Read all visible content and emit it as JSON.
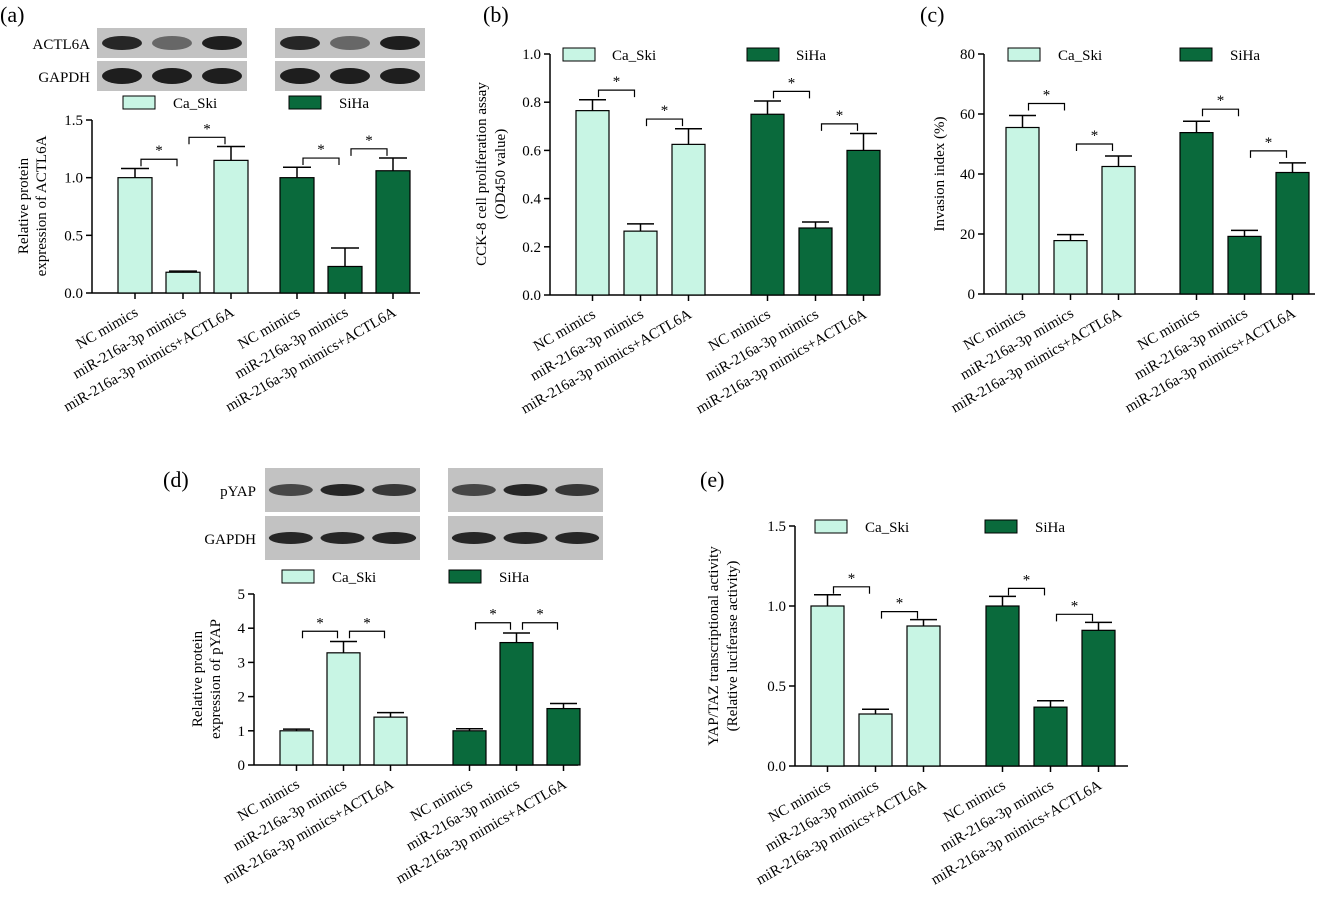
{
  "colors": {
    "light": "#c8f5e4",
    "dark": "#0a6a3c",
    "stroke": "#000000",
    "blot_bg": "#c2c2c2",
    "band": "#1e1e1e"
  },
  "chart_data": [
    {
      "type": "bar",
      "panel_label": "(a)",
      "blots": [
        "ACTL6A",
        "GAPDH"
      ],
      "categories": [
        "NC mimics",
        "miR-216a-3p mimics",
        "miR-216a-3p mimics+ACTL6A"
      ],
      "series": [
        {
          "name": "Ca_Ski",
          "values": [
            1.0,
            0.18,
            1.15
          ],
          "errors": [
            0.08,
            0.01,
            0.12
          ]
        },
        {
          "name": "SiHa",
          "values": [
            1.0,
            0.23,
            1.06
          ],
          "errors": [
            0.09,
            0.16,
            0.11
          ]
        }
      ],
      "title": "",
      "ylabel": [
        "Relative protein",
        "expression of ACTL6A"
      ],
      "ylim": [
        0,
        1.5
      ],
      "yticks": [
        0.0,
        0.5,
        1.0,
        1.5
      ],
      "ytick_labels": [
        "0.0",
        "0.5",
        "1.0",
        "1.5"
      ],
      "significance": "*",
      "legend": "top"
    },
    {
      "type": "bar",
      "panel_label": "(b)",
      "blots": [],
      "categories": [
        "NC mimics",
        "miR-216a-3p mimics",
        "miR-216a-3p mimics+ACTL6A"
      ],
      "series": [
        {
          "name": "Ca_Ski",
          "values": [
            0.765,
            0.265,
            0.625
          ],
          "errors": [
            0.045,
            0.03,
            0.065
          ]
        },
        {
          "name": "SiHa",
          "values": [
            0.75,
            0.278,
            0.6
          ],
          "errors": [
            0.055,
            0.025,
            0.07
          ]
        }
      ],
      "title": "",
      "ylabel": [
        "CCK-8 cell proliferation assay",
        "(OD450 value)"
      ],
      "ylim": [
        0,
        1.0
      ],
      "yticks": [
        0.0,
        0.2,
        0.4,
        0.6,
        0.8,
        1.0
      ],
      "ytick_labels": [
        "0.0",
        "0.2",
        "0.4",
        "0.6",
        "0.8",
        "1.0"
      ],
      "significance": "*",
      "legend": "top"
    },
    {
      "type": "bar",
      "panel_label": "(c)",
      "blots": [],
      "categories": [
        "NC mimics",
        "miR-216a-3p mimics",
        "miR-216a-3p mimics+ACTL6A"
      ],
      "series": [
        {
          "name": "Ca_Ski",
          "values": [
            55.5,
            17.8,
            42.5
          ],
          "errors": [
            4.0,
            2.0,
            3.5
          ]
        },
        {
          "name": "SiHa",
          "values": [
            53.8,
            19.2,
            40.5
          ],
          "errors": [
            3.8,
            2.0,
            3.2
          ]
        }
      ],
      "title": "",
      "ylabel": [
        "Invasion index (%)"
      ],
      "ylim": [
        0,
        80
      ],
      "yticks": [
        0,
        20,
        40,
        60,
        80
      ],
      "ytick_labels": [
        "0",
        "20",
        "40",
        "60",
        "80"
      ],
      "significance": "*",
      "legend": "top"
    },
    {
      "type": "bar",
      "panel_label": "(d)",
      "blots": [
        "pYAP",
        "GAPDH"
      ],
      "categories": [
        "NC mimics",
        "miR-216a-3p mimics",
        "miR-216a-3p mimics+ACTL6A"
      ],
      "series": [
        {
          "name": "Ca_Ski",
          "values": [
            1.0,
            3.28,
            1.4
          ],
          "errors": [
            0.05,
            0.33,
            0.13
          ]
        },
        {
          "name": "SiHa",
          "values": [
            1.0,
            3.58,
            1.65
          ],
          "errors": [
            0.06,
            0.28,
            0.15
          ]
        }
      ],
      "title": "",
      "ylabel": [
        "Relative protein",
        "expression of pYAP"
      ],
      "ylim": [
        0,
        5
      ],
      "yticks": [
        0,
        1,
        2,
        3,
        4,
        5
      ],
      "ytick_labels": [
        "0",
        "1",
        "2",
        "3",
        "4",
        "5"
      ],
      "significance": "*",
      "legend": "top"
    },
    {
      "type": "bar",
      "panel_label": "(e)",
      "blots": [],
      "categories": [
        "NC mimics",
        "miR-216a-3p mimics",
        "miR-216a-3p mimics+ACTL6A"
      ],
      "series": [
        {
          "name": "Ca_Ski",
          "values": [
            1.0,
            0.325,
            0.875
          ],
          "errors": [
            0.07,
            0.03,
            0.04
          ]
        },
        {
          "name": "SiHa",
          "values": [
            1.0,
            0.368,
            0.848
          ],
          "errors": [
            0.06,
            0.04,
            0.05
          ]
        }
      ],
      "title": "",
      "ylabel": [
        "YAP/TAZ transcriptional activity",
        "(Relative luciferase activity)"
      ],
      "ylim": [
        0,
        1.5
      ],
      "yticks": [
        0.0,
        0.5,
        1.0,
        1.5
      ],
      "ytick_labels": [
        "0.0",
        "0.5",
        "1.0",
        "1.5"
      ],
      "significance": "*",
      "legend": "top"
    }
  ]
}
